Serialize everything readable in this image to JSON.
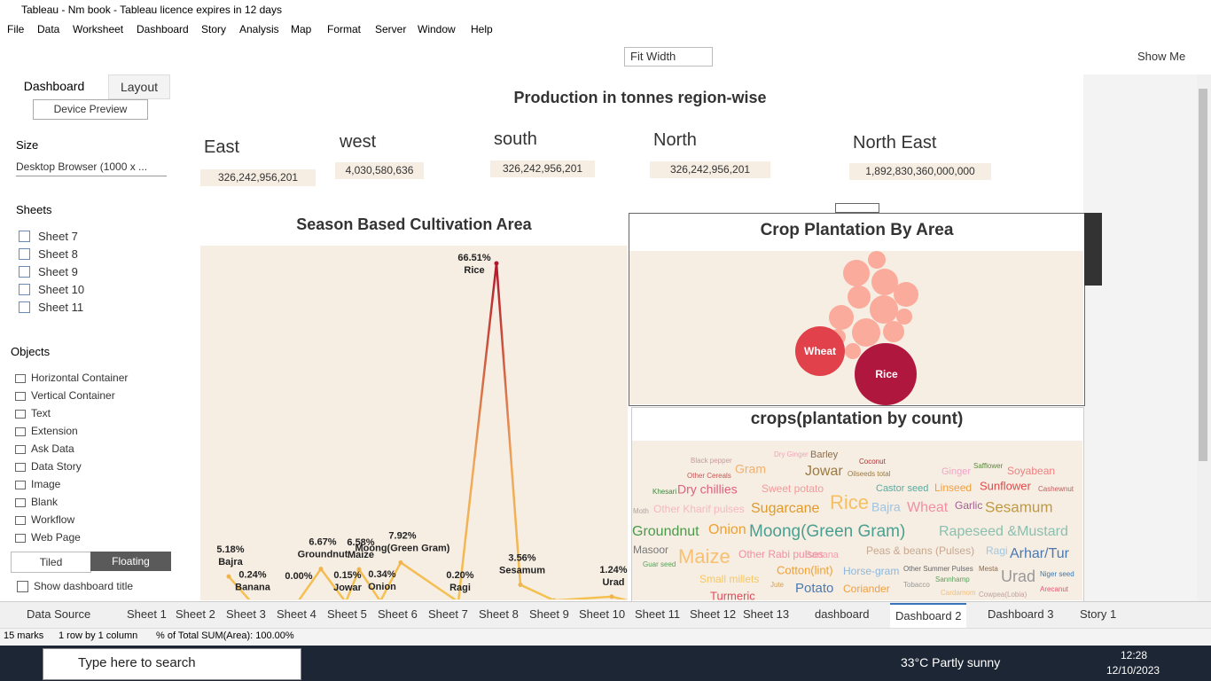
{
  "title_bar": "Tableau - Nm book - Tableau licence expires in 12 days",
  "menu": [
    "File",
    "Data",
    "Worksheet",
    "Dashboard",
    "Story",
    "Analysis",
    "Map",
    "Format",
    "Server",
    "Window",
    "Help"
  ],
  "toolbar": {
    "fit": "Fit Width",
    "show_me": "Show Me"
  },
  "left_panel": {
    "tabs": [
      "Dashboard",
      "Layout"
    ],
    "device_preview": "Device Preview",
    "size_heading": "Size",
    "size_value": "Desktop Browser (1000 x ...",
    "sheets_heading": "Sheets",
    "sheets": [
      "Sheet 7",
      "Sheet 8",
      "Sheet 9",
      "Sheet 10",
      "Sheet 11"
    ],
    "objects_heading": "Objects",
    "objects": [
      "Horizontal Container",
      "Vertical Container",
      "Text",
      "Extension",
      "Ask Data",
      "Data Story",
      "Image",
      "Blank",
      "Workflow",
      "Web Page"
    ],
    "tiled": "Tiled",
    "floating": "Floating",
    "show_title": "Show dashboard title"
  },
  "dashboard": {
    "title": "Production in tonnes region-wise",
    "regions": [
      {
        "name": "East",
        "value": "326,242,956,201"
      },
      {
        "name": "west",
        "value": "4,030,580,636"
      },
      {
        "name": "south",
        "value": "326,242,956,201"
      },
      {
        "name": "North",
        "value": "326,242,956,201"
      },
      {
        "name": "North East",
        "value": "1,892,830,360,000,000"
      }
    ],
    "season_chart": {
      "title": "Season Based Cultivation Area",
      "categories": [
        "Bajra",
        "Banana",
        null,
        "Groundnut",
        "Jowar",
        "Maize",
        "Onion",
        "Moong(Green Gram)",
        "Ragi",
        "Rice",
        "Sesamum",
        null,
        "Urad"
      ],
      "values": [
        5.18,
        0.24,
        0.0,
        6.67,
        0.15,
        6.58,
        0.34,
        7.92,
        0.2,
        66.51,
        3.56,
        0.5,
        1.24
      ],
      "value_labels": [
        "5.18%",
        "0.24%",
        "0.00%",
        "6.67%",
        "0.15%",
        "6.58%",
        "0.34%",
        "7.92%",
        "0.20%",
        "66.51%",
        "3.56%",
        null,
        "1.24%"
      ]
    },
    "bubble_chart": {
      "title": "Crop Plantation By Area",
      "labels": [
        "Wheat",
        "Rice"
      ]
    },
    "word_cloud": {
      "title": "crops(plantation by count)",
      "words": [
        "Dry Ginger",
        "Barley",
        "Black pepper",
        "Coconut",
        "Other Cereals",
        "Gram",
        "Jowar",
        "Oilseeds total",
        "Ginger",
        "Safflower",
        "Soyabean",
        "Khesari",
        "Dry chillies",
        "Sweet potato",
        "Castor seed",
        "Linseed",
        "Sunflower",
        "Cashewnut",
        "Moth",
        "Other Kharif pulses",
        "Sugarcane",
        "Rice",
        "Bajra",
        "Wheat",
        "Garlic",
        "Sesamum",
        "Groundnut",
        "Onion",
        "Moong(Green Gram)",
        "Rapeseed &Mustard",
        "Masoor",
        "Maize",
        "Other Rabi pulses",
        "Banana",
        "Peas & beans (Pulses)",
        "Ragi",
        "Arhar/Tur",
        "Guar seed",
        "Cotton(lint)",
        "Horse-gram",
        "Other Summer Pulses",
        "Mesta",
        "Urad",
        "Niger seed",
        "Small millets",
        "Jute",
        "Potato",
        "Coriander",
        "Tobacco",
        "Sannhamp",
        "Arecanut",
        "Turmeric",
        "Cardamom",
        "Cowpea(Lobia)"
      ]
    }
  },
  "tabs": [
    "Data Source",
    "Sheet 1",
    "Sheet 2",
    "Sheet 3",
    "Sheet 4",
    "Sheet 5",
    "Sheet 6",
    "Sheet 7",
    "Sheet 8",
    "Sheet 9",
    "Sheet 10",
    "Sheet 11",
    "Sheet 12",
    "Sheet 13",
    "dashboard",
    "Dashboard 2",
    "Dashboard 3",
    "Story 1"
  ],
  "status": [
    "15 marks",
    "1 row by 1 column",
    "% of Total SUM(Area): 100.00%"
  ],
  "taskbar": {
    "search": "Type here to search",
    "weather": "33°C  Partly sunny",
    "time": "12:28",
    "date": "12/10/2023"
  }
}
